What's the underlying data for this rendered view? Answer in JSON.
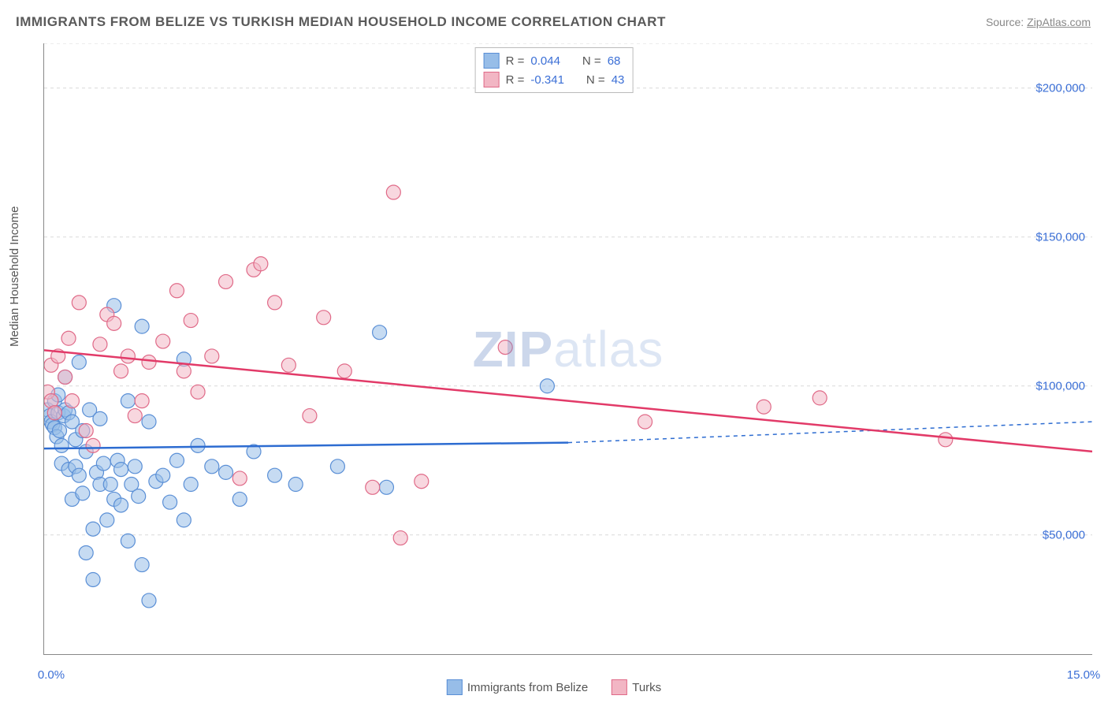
{
  "title": "IMMIGRANTS FROM BELIZE VS TURKISH MEDIAN HOUSEHOLD INCOME CORRELATION CHART",
  "source_prefix": "Source: ",
  "source_name": "ZipAtlas.com",
  "watermark_a": "ZIP",
  "watermark_b": "atlas",
  "chart": {
    "type": "scatter",
    "y_label": "Median Household Income",
    "x_min": 0.0,
    "x_max": 15.0,
    "x_min_label": "0.0%",
    "x_max_label": "15.0%",
    "y_min": 10000,
    "y_max": 215000,
    "y_grid": [
      50000,
      100000,
      150000,
      200000
    ],
    "y_grid_labels": [
      "$50,000",
      "$100,000",
      "$150,000",
      "$200,000"
    ],
    "y_top_hint": 215000,
    "x_ticks_minor": [
      0,
      1.5,
      3.0,
      4.5,
      6.0,
      7.5,
      9.0,
      10.5,
      12.0,
      13.5,
      15.0
    ],
    "plot_bg": "#ffffff",
    "grid_color": "#d9d9d9",
    "grid_dash": "4,4",
    "axis_color": "#888888",
    "tick_label_color": "#3b6fd6",
    "axis_label_color": "#555555",
    "marker_radius": 9,
    "marker_opacity": 0.55,
    "trend_line_width": 2.5,
    "trend_dash_extension": "5,5",
    "series": [
      {
        "key": "belize",
        "label": "Immigrants from Belize",
        "fill": "#97bde8",
        "stroke": "#5a8fd6",
        "line_color": "#2d6cd1",
        "R": "0.044",
        "N": "68",
        "trend": {
          "x1": 0.0,
          "y1": 79000,
          "x2": 7.5,
          "y2": 81000,
          "x_ext": 15.0,
          "y_ext": 88000
        },
        "points": [
          [
            0.05,
            92000
          ],
          [
            0.08,
            90000
          ],
          [
            0.1,
            88000
          ],
          [
            0.12,
            87000
          ],
          [
            0.15,
            86000
          ],
          [
            0.15,
            95000
          ],
          [
            0.18,
            83000
          ],
          [
            0.2,
            91000
          ],
          [
            0.2,
            97000
          ],
          [
            0.22,
            85000
          ],
          [
            0.25,
            80000
          ],
          [
            0.25,
            74000
          ],
          [
            0.28,
            90000
          ],
          [
            0.3,
            92000
          ],
          [
            0.3,
            103000
          ],
          [
            0.35,
            91000
          ],
          [
            0.35,
            72000
          ],
          [
            0.4,
            88000
          ],
          [
            0.4,
            62000
          ],
          [
            0.45,
            82000
          ],
          [
            0.45,
            73000
          ],
          [
            0.5,
            108000
          ],
          [
            0.5,
            70000
          ],
          [
            0.55,
            64000
          ],
          [
            0.55,
            85000
          ],
          [
            0.6,
            78000
          ],
          [
            0.6,
            44000
          ],
          [
            0.65,
            92000
          ],
          [
            0.7,
            52000
          ],
          [
            0.7,
            35000
          ],
          [
            0.75,
            71000
          ],
          [
            0.8,
            67000
          ],
          [
            0.8,
            89000
          ],
          [
            0.85,
            74000
          ],
          [
            0.9,
            55000
          ],
          [
            0.95,
            67000
          ],
          [
            1.0,
            62000
          ],
          [
            1.0,
            127000
          ],
          [
            1.05,
            75000
          ],
          [
            1.1,
            72000
          ],
          [
            1.1,
            60000
          ],
          [
            1.2,
            95000
          ],
          [
            1.2,
            48000
          ],
          [
            1.25,
            67000
          ],
          [
            1.3,
            73000
          ],
          [
            1.35,
            63000
          ],
          [
            1.4,
            120000
          ],
          [
            1.4,
            40000
          ],
          [
            1.5,
            88000
          ],
          [
            1.5,
            28000
          ],
          [
            1.6,
            68000
          ],
          [
            1.7,
            70000
          ],
          [
            1.8,
            61000
          ],
          [
            1.9,
            75000
          ],
          [
            2.0,
            109000
          ],
          [
            2.0,
            55000
          ],
          [
            2.1,
            67000
          ],
          [
            2.2,
            80000
          ],
          [
            2.4,
            73000
          ],
          [
            2.6,
            71000
          ],
          [
            2.8,
            62000
          ],
          [
            3.0,
            78000
          ],
          [
            3.3,
            70000
          ],
          [
            3.6,
            67000
          ],
          [
            4.2,
            73000
          ],
          [
            4.8,
            118000
          ],
          [
            4.9,
            66000
          ],
          [
            7.2,
            100000
          ]
        ]
      },
      {
        "key": "turks",
        "label": "Turks",
        "fill": "#f2b6c4",
        "stroke": "#e06a88",
        "line_color": "#e23a68",
        "R": "-0.341",
        "N": "43",
        "trend": {
          "x1": 0.0,
          "y1": 112000,
          "x2": 15.0,
          "y2": 78000,
          "x_ext": 15.0,
          "y_ext": 78000
        },
        "points": [
          [
            0.05,
            98000
          ],
          [
            0.1,
            107000
          ],
          [
            0.1,
            95000
          ],
          [
            0.15,
            91000
          ],
          [
            0.2,
            110000
          ],
          [
            0.3,
            103000
          ],
          [
            0.35,
            116000
          ],
          [
            0.4,
            95000
          ],
          [
            0.5,
            128000
          ],
          [
            0.6,
            85000
          ],
          [
            0.7,
            80000
          ],
          [
            0.8,
            114000
          ],
          [
            0.9,
            124000
          ],
          [
            1.0,
            121000
          ],
          [
            1.1,
            105000
          ],
          [
            1.2,
            110000
          ],
          [
            1.3,
            90000
          ],
          [
            1.4,
            95000
          ],
          [
            1.5,
            108000
          ],
          [
            1.7,
            115000
          ],
          [
            1.9,
            132000
          ],
          [
            2.0,
            105000
          ],
          [
            2.1,
            122000
          ],
          [
            2.2,
            98000
          ],
          [
            2.4,
            110000
          ],
          [
            2.6,
            135000
          ],
          [
            2.8,
            69000
          ],
          [
            3.0,
            139000
          ],
          [
            3.1,
            141000
          ],
          [
            3.3,
            128000
          ],
          [
            3.5,
            107000
          ],
          [
            3.8,
            90000
          ],
          [
            4.0,
            123000
          ],
          [
            4.3,
            105000
          ],
          [
            4.7,
            66000
          ],
          [
            5.0,
            165000
          ],
          [
            5.1,
            49000
          ],
          [
            5.4,
            68000
          ],
          [
            6.6,
            113000
          ],
          [
            8.6,
            88000
          ],
          [
            10.3,
            93000
          ],
          [
            11.1,
            96000
          ],
          [
            12.9,
            82000
          ]
        ]
      }
    ]
  },
  "bottom_legend": {
    "items": [
      {
        "key": "belize",
        "label": "Immigrants from Belize"
      },
      {
        "key": "turks",
        "label": "Turks"
      }
    ]
  },
  "top_legend": {
    "r_label": "R =",
    "n_label": "N ="
  }
}
